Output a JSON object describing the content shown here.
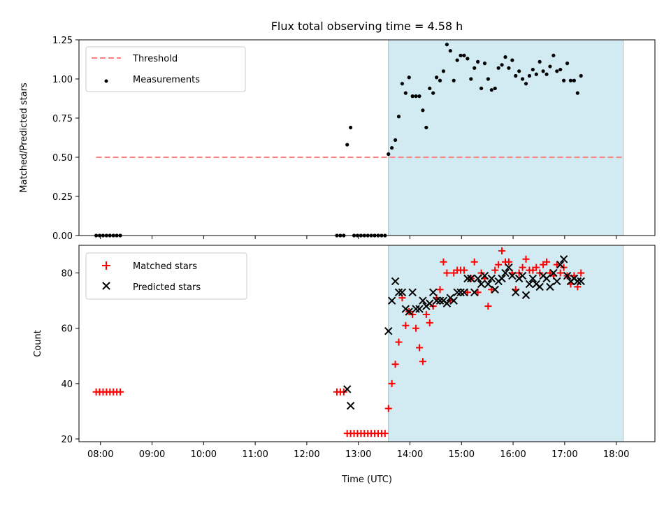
{
  "chart_data": {
    "title": "Flux total observing time = 4.58 h",
    "xlabel": "Time (UTC)",
    "x_ticks": [
      "08:00",
      "09:00",
      "10:00",
      "11:00",
      "12:00",
      "13:00",
      "14:00",
      "15:00",
      "16:00",
      "17:00",
      "18:00"
    ],
    "xlim": [
      "07:35",
      "18:45"
    ],
    "shaded_region": {
      "start": "13:35",
      "end": "18:08",
      "color": "#add8e6"
    },
    "panels": [
      {
        "type": "scatter",
        "ylabel": "Matched/Predicted stars",
        "ylim": [
          0,
          1.25
        ],
        "y_ticks": [
          "0.00",
          "0.25",
          "0.50",
          "0.75",
          "1.00",
          "1.25"
        ],
        "legend_position": "top-left",
        "lines": [
          {
            "name": "Threshold",
            "y": 0.5,
            "x_start": "07:55",
            "x_end": "18:08",
            "color": "#ff8080",
            "style": "dashed"
          }
        ],
        "series": [
          {
            "name": "Measurements",
            "marker": "dot",
            "color": "#000000",
            "points": [
              [
                "07:55",
                0
              ],
              [
                "07:59",
                0
              ],
              [
                "08:03",
                0
              ],
              [
                "08:07",
                0
              ],
              [
                "08:11",
                0
              ],
              [
                "08:15",
                0
              ],
              [
                "08:19",
                0
              ],
              [
                "08:23",
                0
              ],
              [
                "12:35",
                0
              ],
              [
                "12:39",
                0
              ],
              [
                "12:43",
                0
              ],
              [
                "12:47",
                0.58
              ],
              [
                "12:51",
                0.69
              ],
              [
                "12:55",
                0
              ],
              [
                "12:59",
                0
              ],
              [
                "13:03",
                0
              ],
              [
                "13:07",
                0
              ],
              [
                "13:11",
                0
              ],
              [
                "13:15",
                0
              ],
              [
                "13:19",
                0
              ],
              [
                "13:23",
                0
              ],
              [
                "13:27",
                0
              ],
              [
                "13:31",
                0
              ],
              [
                "13:35",
                0.52
              ],
              [
                "13:39",
                0.56
              ],
              [
                "13:43",
                0.61
              ],
              [
                "13:47",
                0.76
              ],
              [
                "13:51",
                0.97
              ],
              [
                "13:55",
                0.91
              ],
              [
                "13:59",
                1.01
              ],
              [
                "14:03",
                0.89
              ],
              [
                "14:07",
                0.89
              ],
              [
                "14:11",
                0.89
              ],
              [
                "14:15",
                0.8
              ],
              [
                "14:19",
                0.69
              ],
              [
                "14:23",
                0.94
              ],
              [
                "14:27",
                0.91
              ],
              [
                "14:31",
                1.01
              ],
              [
                "14:35",
                0.99
              ],
              [
                "14:39",
                1.05
              ],
              [
                "14:43",
                1.22
              ],
              [
                "14:47",
                1.18
              ],
              [
                "14:51",
                0.99
              ],
              [
                "14:55",
                1.12
              ],
              [
                "14:59",
                1.15
              ],
              [
                "15:03",
                1.15
              ],
              [
                "15:07",
                1.13
              ],
              [
                "15:11",
                1.0
              ],
              [
                "15:15",
                1.07
              ],
              [
                "15:19",
                1.11
              ],
              [
                "15:23",
                0.94
              ],
              [
                "15:27",
                1.1
              ],
              [
                "15:31",
                1.0
              ],
              [
                "15:35",
                0.93
              ],
              [
                "15:39",
                0.94
              ],
              [
                "15:43",
                1.07
              ],
              [
                "15:47",
                1.09
              ],
              [
                "15:51",
                1.14
              ],
              [
                "15:55",
                1.07
              ],
              [
                "15:59",
                1.12
              ],
              [
                "16:03",
                1.02
              ],
              [
                "16:07",
                1.05
              ],
              [
                "16:11",
                1.0
              ],
              [
                "16:15",
                0.97
              ],
              [
                "16:19",
                1.02
              ],
              [
                "16:23",
                1.06
              ],
              [
                "16:27",
                1.03
              ],
              [
                "16:31",
                1.11
              ],
              [
                "16:35",
                1.05
              ],
              [
                "16:39",
                1.03
              ],
              [
                "16:43",
                1.08
              ],
              [
                "16:47",
                1.15
              ],
              [
                "16:51",
                1.05
              ],
              [
                "16:55",
                1.06
              ],
              [
                "16:59",
                0.99
              ],
              [
                "17:03",
                1.1
              ],
              [
                "17:07",
                0.99
              ],
              [
                "17:11",
                0.99
              ],
              [
                "17:15",
                0.91
              ],
              [
                "17:19",
                1.02
              ]
            ]
          }
        ]
      },
      {
        "type": "scatter",
        "ylabel": "Count",
        "ylim": [
          19,
          90
        ],
        "y_ticks": [
          "20",
          "40",
          "60",
          "80"
        ],
        "legend_position": "top-left",
        "series": [
          {
            "name": "Matched stars",
            "marker": "plus",
            "color": "#ff0000",
            "points": [
              [
                "07:55",
                37
              ],
              [
                "07:59",
                37
              ],
              [
                "08:03",
                37
              ],
              [
                "08:07",
                37
              ],
              [
                "08:11",
                37
              ],
              [
                "08:15",
                37
              ],
              [
                "08:19",
                37
              ],
              [
                "08:23",
                37
              ],
              [
                "12:35",
                37
              ],
              [
                "12:39",
                37
              ],
              [
                "12:43",
                37
              ],
              [
                "12:47",
                22
              ],
              [
                "12:51",
                22
              ],
              [
                "12:55",
                22
              ],
              [
                "12:59",
                22
              ],
              [
                "13:03",
                22
              ],
              [
                "13:07",
                22
              ],
              [
                "13:11",
                22
              ],
              [
                "13:15",
                22
              ],
              [
                "13:19",
                22
              ],
              [
                "13:23",
                22
              ],
              [
                "13:27",
                22
              ],
              [
                "13:31",
                22
              ],
              [
                "13:35",
                31
              ],
              [
                "13:39",
                40
              ],
              [
                "13:43",
                47
              ],
              [
                "13:47",
                55
              ],
              [
                "13:51",
                71
              ],
              [
                "13:55",
                61
              ],
              [
                "13:59",
                66
              ],
              [
                "14:03",
                65
              ],
              [
                "14:07",
                60
              ],
              [
                "14:11",
                53
              ],
              [
                "14:15",
                48
              ],
              [
                "14:19",
                65
              ],
              [
                "14:23",
                62
              ],
              [
                "14:27",
                68
              ],
              [
                "14:31",
                71
              ],
              [
                "14:35",
                74
              ],
              [
                "14:39",
                84
              ],
              [
                "14:43",
                80
              ],
              [
                "14:47",
                70
              ],
              [
                "14:51",
                80
              ],
              [
                "14:55",
                81
              ],
              [
                "14:59",
                81
              ],
              [
                "15:03",
                81
              ],
              [
                "15:07",
                73
              ],
              [
                "15:11",
                78
              ],
              [
                "15:15",
                84
              ],
              [
                "15:19",
                73
              ],
              [
                "15:23",
                80
              ],
              [
                "15:27",
                78
              ],
              [
                "15:31",
                68
              ],
              [
                "15:35",
                74
              ],
              [
                "15:39",
                81
              ],
              [
                "15:43",
                83
              ],
              [
                "15:47",
                88
              ],
              [
                "15:51",
                84
              ],
              [
                "15:55",
                84
              ],
              [
                "15:59",
                80
              ],
              [
                "16:03",
                74
              ],
              [
                "16:07",
                80
              ],
              [
                "16:11",
                82
              ],
              [
                "16:15",
                85
              ],
              [
                "16:19",
                81
              ],
              [
                "16:23",
                81
              ],
              [
                "16:27",
                82
              ],
              [
                "16:31",
                80
              ],
              [
                "16:35",
                83
              ],
              [
                "16:39",
                84
              ],
              [
                "16:43",
                80
              ],
              [
                "16:47",
                79
              ],
              [
                "16:51",
                83
              ],
              [
                "16:55",
                80
              ],
              [
                "16:59",
                82
              ],
              [
                "17:03",
                79
              ],
              [
                "17:07",
                76
              ],
              [
                "17:11",
                79
              ],
              [
                "17:15",
                75
              ],
              [
                "17:19",
                80
              ]
            ]
          },
          {
            "name": "Predicted stars",
            "marker": "x",
            "color": "#000000",
            "points": [
              [
                "12:47",
                38
              ],
              [
                "12:51",
                32
              ],
              [
                "13:35",
                59
              ],
              [
                "13:39",
                70
              ],
              [
                "13:43",
                77
              ],
              [
                "13:47",
                73
              ],
              [
                "13:51",
                73
              ],
              [
                "13:55",
                67
              ],
              [
                "13:59",
                66
              ],
              [
                "14:03",
                73
              ],
              [
                "14:07",
                67
              ],
              [
                "14:11",
                67
              ],
              [
                "14:15",
                70
              ],
              [
                "14:19",
                68
              ],
              [
                "14:23",
                69
              ],
              [
                "14:27",
                73
              ],
              [
                "14:31",
                70
              ],
              [
                "14:35",
                70
              ],
              [
                "14:39",
                70
              ],
              [
                "14:43",
                69
              ],
              [
                "14:47",
                71
              ],
              [
                "14:51",
                70
              ],
              [
                "14:55",
                73
              ],
              [
                "14:59",
                73
              ],
              [
                "15:03",
                73
              ],
              [
                "15:07",
                78
              ],
              [
                "15:11",
                78
              ],
              [
                "15:15",
                73
              ],
              [
                "15:19",
                78
              ],
              [
                "15:23",
                76
              ],
              [
                "15:27",
                79
              ],
              [
                "15:31",
                76
              ],
              [
                "15:35",
                78
              ],
              [
                "15:39",
                74
              ],
              [
                "15:43",
                77
              ],
              [
                "15:47",
                78
              ],
              [
                "15:51",
                80
              ],
              [
                "15:55",
                82
              ],
              [
                "15:59",
                79
              ],
              [
                "16:03",
                73
              ],
              [
                "16:07",
                78
              ],
              [
                "16:11",
                79
              ],
              [
                "16:15",
                72
              ],
              [
                "16:19",
                76
              ],
              [
                "16:23",
                78
              ],
              [
                "16:27",
                76
              ],
              [
                "16:31",
                75
              ],
              [
                "16:35",
                79
              ],
              [
                "16:39",
                78
              ],
              [
                "16:43",
                75
              ],
              [
                "16:47",
                80
              ],
              [
                "16:51",
                77
              ],
              [
                "16:55",
                83
              ],
              [
                "16:59",
                85
              ],
              [
                "17:03",
                79
              ],
              [
                "17:07",
                77
              ],
              [
                "17:11",
                78
              ],
              [
                "17:15",
                77
              ],
              [
                "17:19",
                77
              ]
            ]
          }
        ]
      }
    ]
  }
}
